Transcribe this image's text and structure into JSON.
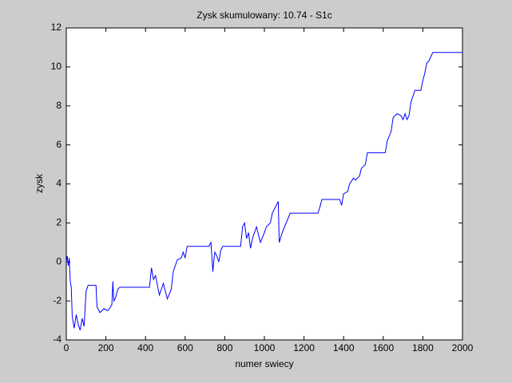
{
  "chart_data": {
    "type": "line",
    "title": "Zysk skumulowany: 10.74 - S1c",
    "x_label": "numer swiecy",
    "y_label": "zysk",
    "xlim": [
      0,
      2000
    ],
    "xticks": [
      0,
      200,
      400,
      600,
      800,
      1000,
      1200,
      1400,
      1600,
      1800,
      2000
    ],
    "ylim": [
      -4,
      12
    ],
    "yticks": [
      -4,
      -2,
      0,
      2,
      4,
      6,
      8,
      10,
      12
    ],
    "series": [
      {
        "name": "zysk",
        "color": "#0000ff",
        "x": [
          0,
          5,
          10,
          15,
          20,
          25,
          30,
          40,
          50,
          60,
          70,
          80,
          90,
          100,
          110,
          150,
          155,
          170,
          190,
          210,
          230,
          235,
          240,
          250,
          260,
          270,
          420,
          425,
          430,
          440,
          450,
          470,
          490,
          510,
          530,
          540,
          550,
          560,
          580,
          590,
          600,
          610,
          720,
          730,
          740,
          745,
          750,
          760,
          770,
          780,
          790,
          880,
          890,
          900,
          910,
          920,
          930,
          940,
          960,
          980,
          1000,
          1010,
          1030,
          1040,
          1060,
          1070,
          1075,
          1090,
          1110,
          1130,
          1270,
          1280,
          1290,
          1380,
          1390,
          1400,
          1420,
          1430,
          1450,
          1460,
          1480,
          1490,
          1510,
          1520,
          1610,
          1620,
          1640,
          1650,
          1670,
          1690,
          1700,
          1710,
          1720,
          1730,
          1740,
          1750,
          1760,
          1790,
          1800,
          1810,
          1820,
          1830,
          1850,
          2000
        ],
        "values": [
          0,
          0.3,
          -0.2,
          0.2,
          -1.0,
          -1.3,
          -2.8,
          -3.4,
          -2.7,
          -3.2,
          -3.5,
          -2.9,
          -3.3,
          -1.5,
          -1.2,
          -1.2,
          -2.3,
          -2.6,
          -2.4,
          -2.5,
          -2.2,
          -1.0,
          -2.0,
          -1.8,
          -1.4,
          -1.3,
          -1.3,
          -0.8,
          -0.3,
          -0.9,
          -0.7,
          -1.7,
          -1.1,
          -1.9,
          -1.4,
          -0.5,
          -0.2,
          0.1,
          0.2,
          0.5,
          0.2,
          0.8,
          0.8,
          1.0,
          -0.5,
          0.1,
          0.5,
          0.3,
          0.0,
          0.6,
          0.8,
          0.8,
          1.8,
          2.0,
          1.2,
          1.5,
          0.7,
          1.2,
          1.8,
          1.0,
          1.5,
          1.8,
          2.0,
          2.5,
          2.9,
          3.1,
          1.0,
          1.5,
          2.0,
          2.5,
          2.5,
          2.8,
          3.2,
          3.2,
          2.9,
          3.5,
          3.6,
          4.0,
          4.3,
          4.2,
          4.4,
          4.8,
          5.0,
          5.6,
          5.6,
          6.2,
          6.7,
          7.4,
          7.6,
          7.5,
          7.3,
          7.6,
          7.3,
          7.5,
          8.2,
          8.5,
          8.8,
          8.8,
          9.3,
          9.7,
          10.2,
          10.3,
          10.74,
          10.74
        ]
      }
    ]
  }
}
